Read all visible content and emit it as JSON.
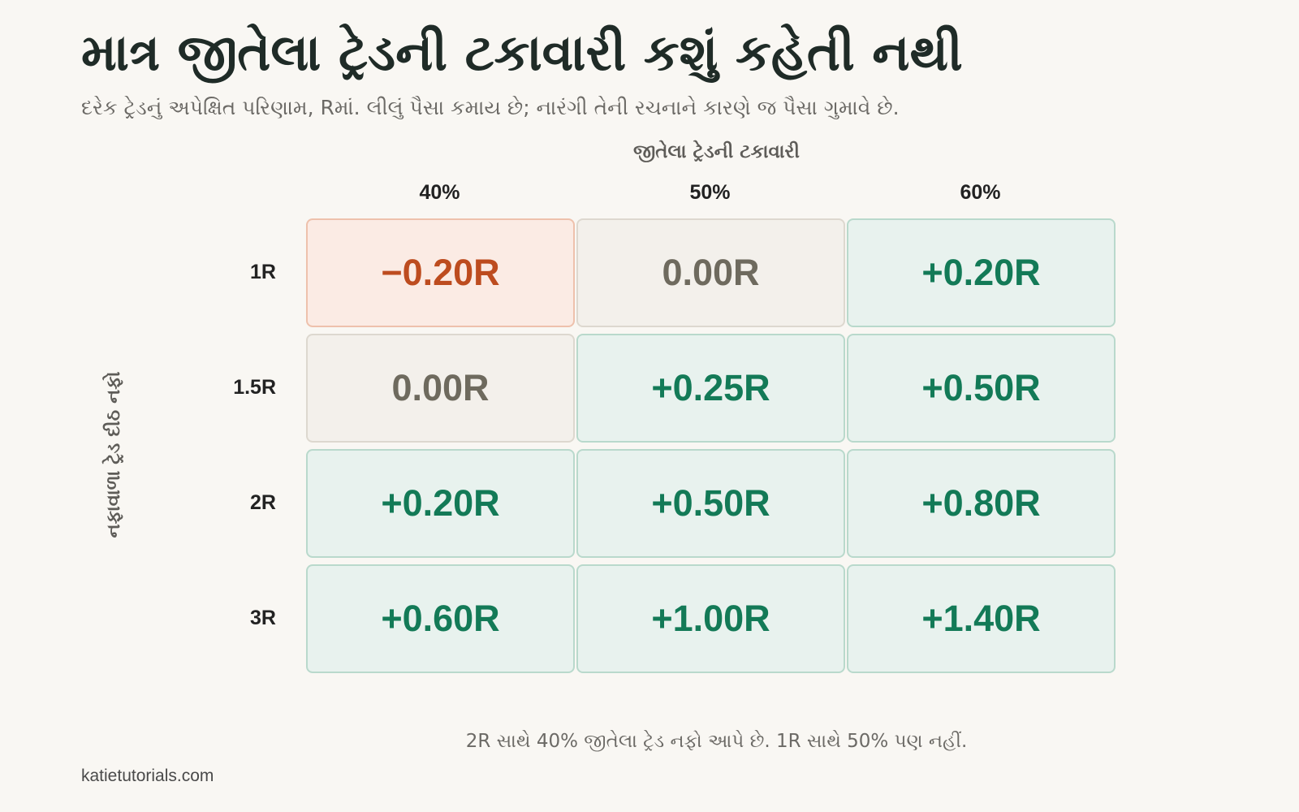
{
  "chart_data": {
    "type": "heatmap",
    "title": "માત્ર જીતેલા ટ્રેડની ટકાવારી કશું કહેતી નથી",
    "subtitle": "દરેક ટ્રેડનું અપેક્ષિત પરિણામ, Rમાં. લીલું પૈસા કમાય છે; નારંગી તેની રચનાને કારણે જ પૈસા ગુમાવે છે.",
    "xlabel": "જીતેલા ટ્રેડની ટકાવારી",
    "ylabel": "નફાવાળા ટ્રેડ દીઠ નફો",
    "x": [
      "40%",
      "50%",
      "60%"
    ],
    "y": [
      "1R",
      "1.5R",
      "2R",
      "3R"
    ],
    "values": [
      [
        -0.2,
        0.0,
        0.2
      ],
      [
        0.0,
        0.25,
        0.5
      ],
      [
        0.2,
        0.5,
        0.8
      ],
      [
        0.6,
        1.0,
        1.4
      ]
    ],
    "labels": [
      [
        "−0.20R",
        "0.00R",
        "+0.20R"
      ],
      [
        "0.00R",
        "+0.25R",
        "+0.50R"
      ],
      [
        "+0.20R",
        "+0.50R",
        "+0.80R"
      ],
      [
        "+0.60R",
        "+1.00R",
        "+1.40R"
      ]
    ],
    "colors": {
      "positive": "#137a57",
      "zero": "#6e6a5e",
      "negative": "#bd4c1f"
    }
  },
  "footnote": "2R સાથે 40% જીતેલા ટ્રેડ નફો આપે છે. 1R સાથે 50% પણ નહીં.",
  "source": "katietutorials.com"
}
